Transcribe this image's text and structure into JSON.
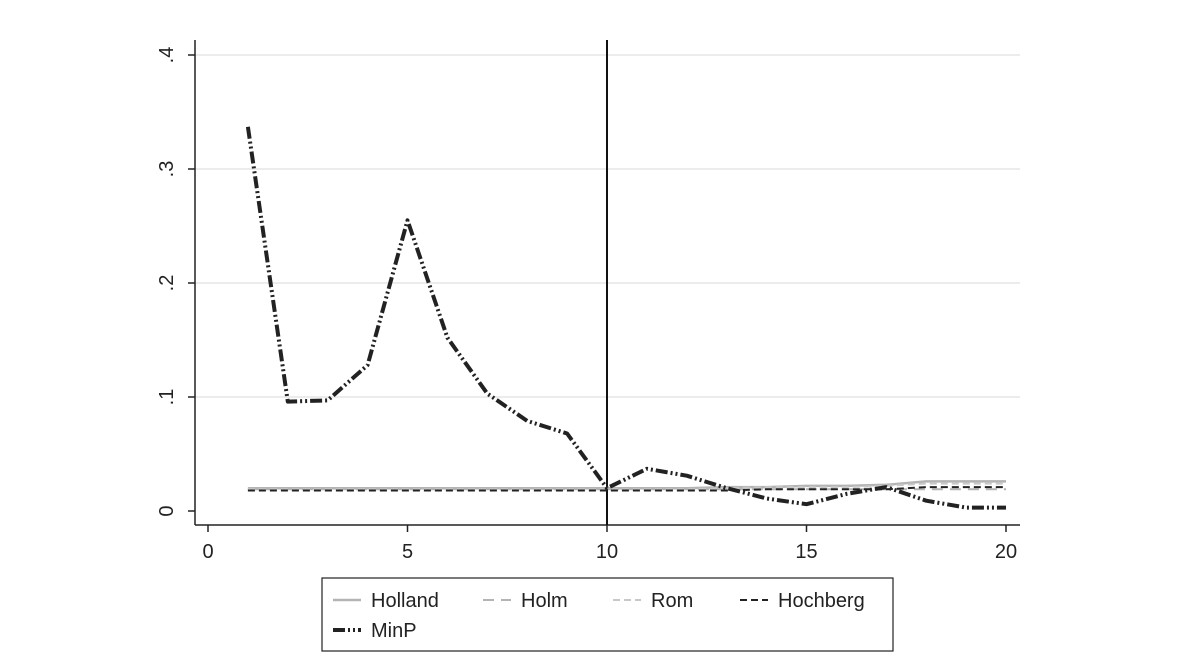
{
  "chart_data": {
    "type": "line",
    "title": "",
    "xlabel": "",
    "ylabel": "",
    "xlim": [
      0,
      20
    ],
    "ylim": [
      0,
      0.4
    ],
    "xticks": [
      0,
      5,
      10,
      15,
      20
    ],
    "xtick_labels": [
      "0",
      "5",
      "10",
      "15",
      "20"
    ],
    "yticks": [
      0,
      0.1,
      0.2,
      0.3,
      0.4
    ],
    "ytick_labels": [
      "0",
      ".1",
      ".2",
      ".3",
      ".4"
    ],
    "grid": "horizontal",
    "vline_x": 10,
    "legend_position": "bottom",
    "x": [
      1,
      2,
      3,
      4,
      5,
      6,
      7,
      8,
      9,
      10,
      11,
      12,
      13,
      14,
      15,
      16,
      17,
      18,
      19,
      20
    ],
    "series": [
      {
        "name": "Holland",
        "color": "#b4b4b4",
        "dash": "solid",
        "values": [
          0.02,
          0.02,
          0.02,
          0.02,
          0.02,
          0.02,
          0.02,
          0.02,
          0.02,
          0.02,
          0.02,
          0.02,
          0.021,
          0.021,
          0.022,
          0.022,
          0.023,
          0.026,
          0.026,
          0.026
        ]
      },
      {
        "name": "Holm",
        "color": "#b4b4b4",
        "dash": "long-dash",
        "values": [
          0.019,
          0.019,
          0.019,
          0.019,
          0.019,
          0.019,
          0.019,
          0.019,
          0.019,
          0.019,
          0.019,
          0.019,
          0.019,
          0.019,
          0.019,
          0.019,
          0.019,
          0.019,
          0.019,
          0.019
        ]
      },
      {
        "name": "Rom",
        "color": "#c8c8c8",
        "dash": "dash",
        "values": [
          0.019,
          0.019,
          0.019,
          0.019,
          0.019,
          0.019,
          0.019,
          0.019,
          0.019,
          0.019,
          0.019,
          0.019,
          0.02,
          0.021,
          0.021,
          0.021,
          0.022,
          0.024,
          0.024,
          0.024
        ]
      },
      {
        "name": "Hochberg",
        "color": "#222222",
        "dash": "dash",
        "values": [
          0.018,
          0.018,
          0.018,
          0.018,
          0.018,
          0.018,
          0.018,
          0.018,
          0.018,
          0.018,
          0.018,
          0.018,
          0.018,
          0.019,
          0.019,
          0.019,
          0.019,
          0.021,
          0.021,
          0.021
        ]
      },
      {
        "name": "MinP",
        "color": "#222222",
        "dash": "dash-dot-dot",
        "values": [
          0.337,
          0.096,
          0.097,
          0.128,
          0.255,
          0.152,
          0.103,
          0.079,
          0.068,
          0.02,
          0.037,
          0.031,
          0.02,
          0.011,
          0.006,
          0.015,
          0.021,
          0.009,
          0.003,
          0.003
        ]
      }
    ]
  }
}
